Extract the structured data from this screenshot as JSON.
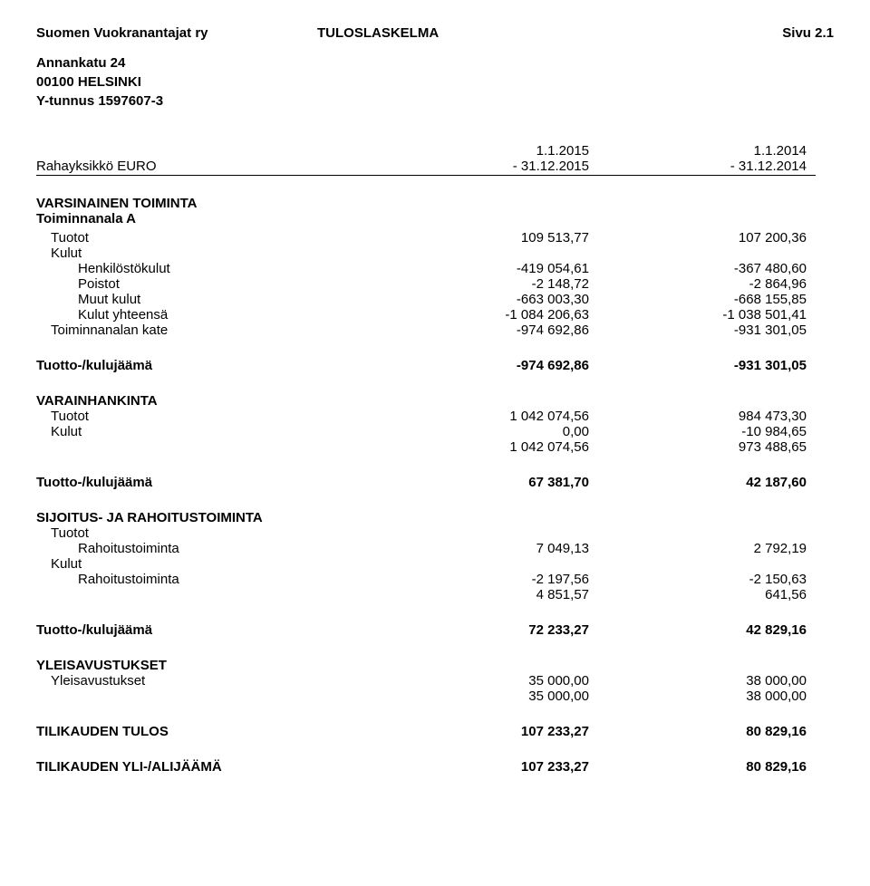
{
  "header": {
    "org": "Suomen Vuokranantajat ry",
    "title": "TULOSLASKELMA",
    "page": "Sivu 2.1"
  },
  "address": {
    "line1": "Annankatu 24",
    "line2": "00100 HELSINKI",
    "line3": "Y-tunnus 1597607-3"
  },
  "period": {
    "p1_top": "1.1.2015",
    "p2_top": "1.1.2014",
    "unit": "Rahayksikkö EURO",
    "p1_bot": "- 31.12.2015",
    "p2_bot": "- 31.12.2014"
  },
  "s1": {
    "h1": "VARSINAINEN TOIMINTA",
    "h2": "Toiminnanala A",
    "tuotot": {
      "l": "Tuotot",
      "a": "109 513,77",
      "b": "107 200,36"
    },
    "kulut_l": "Kulut",
    "henk": {
      "l": "Henkilöstökulut",
      "a": "-419 054,61",
      "b": "-367 480,60"
    },
    "pois": {
      "l": "Poistot",
      "a": "-2 148,72",
      "b": "-2 864,96"
    },
    "muut": {
      "l": "Muut kulut",
      "a": "-663 003,30",
      "b": "-668 155,85"
    },
    "kyht": {
      "l": "Kulut yhteensä",
      "a": "-1 084 206,63",
      "b": "-1 038 501,41"
    },
    "kate": {
      "l": "Toiminnanalan kate",
      "a": "-974 692,86",
      "b": "-931 301,05"
    },
    "jaama": {
      "l": "Tuotto-/kulujäämä",
      "a": "-974 692,86",
      "b": "-931 301,05"
    }
  },
  "s2": {
    "h": "VARAINHANKINTA",
    "tuotot": {
      "l": "Tuotot",
      "a": "1 042 074,56",
      "b": "984 473,30"
    },
    "kulut": {
      "l": "Kulut",
      "a": "0,00",
      "b": "-10 984,65"
    },
    "sum": {
      "a": "1 042 074,56",
      "b": "973 488,65"
    },
    "jaama": {
      "l": "Tuotto-/kulujäämä",
      "a": "67 381,70",
      "b": "42 187,60"
    }
  },
  "s3": {
    "h": "SIJOITUS- JA RAHOITUSTOIMINTA",
    "tuotot_l": "Tuotot",
    "rahoitus_t": {
      "l": "Rahoitustoiminta",
      "a": "7 049,13",
      "b": "2 792,19"
    },
    "kulut_l": "Kulut",
    "rahoitus_k": {
      "l": "Rahoitustoiminta",
      "a": "-2 197,56",
      "b": "-2 150,63"
    },
    "sum": {
      "a": "4 851,57",
      "b": "641,56"
    },
    "jaama": {
      "l": "Tuotto-/kulujäämä",
      "a": "72 233,27",
      "b": "42 829,16"
    }
  },
  "s4": {
    "h": "YLEISAVUSTUKSET",
    "line": {
      "l": "Yleisavustukset",
      "a": "35 000,00",
      "b": "38 000,00"
    },
    "sum": {
      "a": "35 000,00",
      "b": "38 000,00"
    }
  },
  "s5": {
    "tulos": {
      "l": "TILIKAUDEN TULOS",
      "a": "107 233,27",
      "b": "80 829,16"
    },
    "ylialij": {
      "l": "TILIKAUDEN YLI-/ALIJÄÄMÄ",
      "a": "107 233,27",
      "b": "80 829,16"
    }
  }
}
